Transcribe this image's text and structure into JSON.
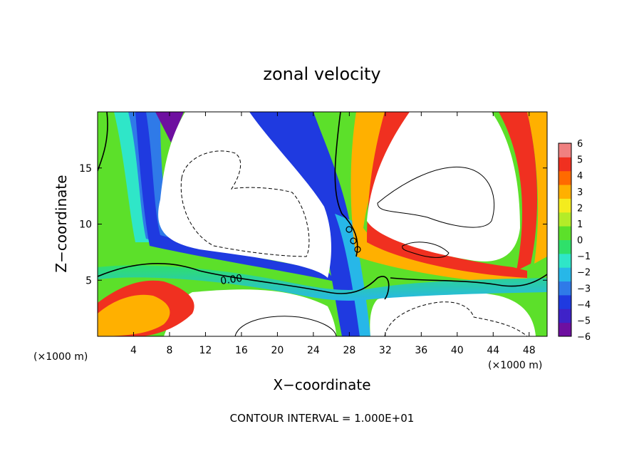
{
  "chart_data": {
    "type": "heatmap",
    "title": "zonal velocity",
    "xlabel": "X−coordinate",
    "ylabel": "Z−coordinate",
    "x_unit_left": "(×1000 m)",
    "x_unit_right": "(×1000 m)",
    "xlim": [
      0,
      50
    ],
    "ylim": [
      0,
      20
    ],
    "x_ticks": [
      4,
      8,
      12,
      16,
      20,
      24,
      28,
      32,
      36,
      40,
      44,
      48
    ],
    "y_ticks": [
      5,
      10,
      15
    ],
    "colorbar": {
      "levels": [
        "6",
        "5",
        "4",
        "3",
        "2",
        "1",
        "0",
        "−1",
        "−2",
        "−3",
        "−4",
        "−5",
        "−6"
      ],
      "range": [
        -6,
        6
      ],
      "colors": [
        "#6e0fa0",
        "#3f22c8",
        "#1f3ae0",
        "#2f7ae8",
        "#27b7e8",
        "#2fe6c8",
        "#2fe06a",
        "#5ce02a",
        "#b4ec28",
        "#f4ec1e",
        "#ffb000",
        "#ff6a00",
        "#f03020",
        "#f08080"
      ]
    },
    "contour_label": "0.00",
    "footer": "CONTOUR INTERVAL = 1.000E+01",
    "saturation_color": "#ffffff"
  }
}
